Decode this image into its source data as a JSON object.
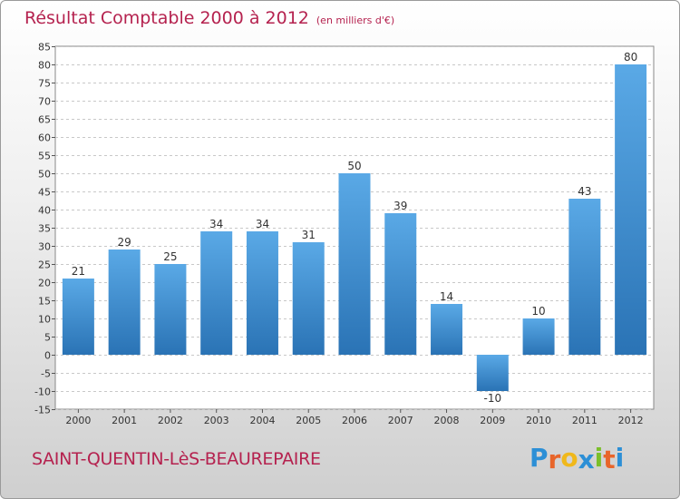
{
  "chart_data": {
    "type": "bar",
    "title": "Résultat Comptable 2000 à 2012",
    "subtitle": "(en milliers d'€)",
    "categories": [
      "2000",
      "2001",
      "2002",
      "2003",
      "2004",
      "2005",
      "2006",
      "2007",
      "2008",
      "2009",
      "2010",
      "2011",
      "2012"
    ],
    "values": [
      21,
      29,
      25,
      34,
      34,
      31,
      50,
      39,
      14,
      -10,
      10,
      43,
      80
    ],
    "ylim": [
      -15,
      85
    ],
    "yticks": [
      -15,
      -10,
      -5,
      0,
      5,
      10,
      15,
      20,
      25,
      30,
      35,
      40,
      45,
      50,
      55,
      60,
      65,
      70,
      75,
      80,
      85
    ],
    "grid": true,
    "xlabel": "",
    "ylabel": "",
    "bar_color": "#3d8fd0"
  },
  "footer": {
    "city": "SAINT-QUENTIN-LèS-BEAUREPAIRE",
    "logo_letters": [
      "P",
      "r",
      "o",
      "x",
      "i",
      "t",
      "i"
    ],
    "logo_colors": [
      "#2c8fd6",
      "#e8652a",
      "#f0b81b",
      "#2c8fd6",
      "#7bbf2a",
      "#e8652a",
      "#2c8fd6"
    ]
  }
}
